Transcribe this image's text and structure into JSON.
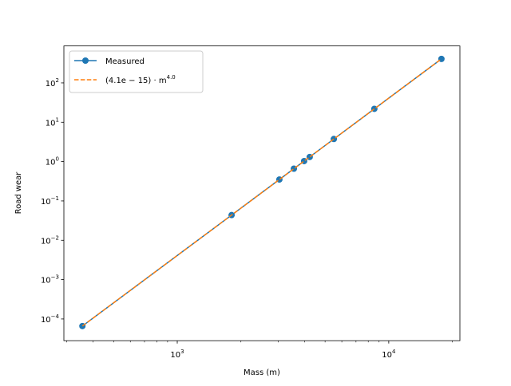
{
  "chart_data": {
    "type": "line",
    "xlabel": "Mass (m)",
    "ylabel": "Road wear",
    "x": [
      356,
      1807,
      3040,
      3560,
      3980,
      4230,
      5500,
      8550,
      17750
    ],
    "series": [
      {
        "name": "Measured",
        "color": "#1f77b4",
        "marker": "o",
        "linestyle": "solid",
        "values": [
          6.6e-05,
          0.0437,
          0.35,
          0.66,
          1.03,
          1.31,
          3.75,
          21.9,
          407
        ]
      },
      {
        "name": "(4.1e − 15) · m^4.0",
        "color": "#ff7f0e",
        "linestyle": "dashed",
        "values": [
          6.6e-05,
          0.0437,
          0.35,
          0.66,
          1.03,
          1.31,
          3.75,
          21.9,
          407
        ]
      }
    ],
    "xscale": "log",
    "yscale": "log",
    "xlim": [
      291,
      21700
    ],
    "ylim": [
      2.8e-05,
      870
    ],
    "xticks": [
      {
        "value": 1000,
        "label": "10^3"
      },
      {
        "value": 10000,
        "label": "10^4"
      }
    ],
    "yticks": [
      {
        "value": 0.0001,
        "label": "10^−4"
      },
      {
        "value": 0.001,
        "label": "10^−3"
      },
      {
        "value": 0.01,
        "label": "10^−2"
      },
      {
        "value": 0.1,
        "label": "10^−1"
      },
      {
        "value": 1,
        "label": "10^0"
      },
      {
        "value": 10,
        "label": "10^1"
      },
      {
        "value": 100,
        "label": "10^2"
      }
    ],
    "legend": "upper left"
  }
}
